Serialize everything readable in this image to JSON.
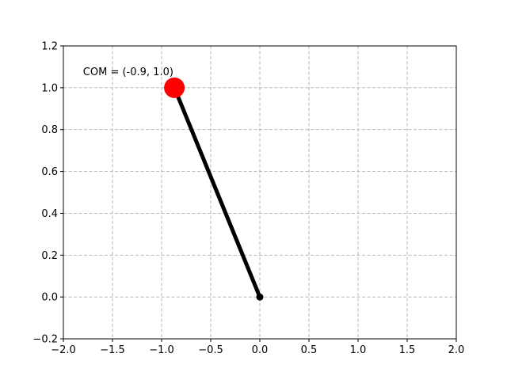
{
  "chart_data": {
    "type": "line",
    "title": "",
    "xlabel": "",
    "ylabel": "",
    "xlim": [
      -2.0,
      2.0
    ],
    "ylim": [
      -0.2,
      1.2
    ],
    "grid": true,
    "x_ticks": [
      -2.0,
      -1.5,
      -1.0,
      -0.5,
      0.0,
      0.5,
      1.0,
      1.5,
      2.0
    ],
    "y_ticks": [
      -0.2,
      0.0,
      0.2,
      0.4,
      0.6,
      0.8,
      1.0,
      1.2
    ],
    "x_tick_labels": [
      "−2.0",
      "−1.5",
      "−1.0",
      "−0.5",
      "0.0",
      "0.5",
      "1.0",
      "1.5",
      "2.0"
    ],
    "y_tick_labels": [
      "−0.2",
      "0.0",
      "0.2",
      "0.4",
      "0.6",
      "0.8",
      "1.0",
      "1.2"
    ],
    "series": [
      {
        "name": "link",
        "x": [
          0.0,
          -0.87
        ],
        "y": [
          0.0,
          1.0
        ],
        "color": "#000000"
      }
    ],
    "points": [
      {
        "name": "pivot",
        "x": 0.0,
        "y": 0.0,
        "color": "#000000"
      },
      {
        "name": "com",
        "x": -0.87,
        "y": 1.0,
        "color": "#ff0000"
      }
    ],
    "annotation": {
      "text": "COM = (-0.9, 1.0)",
      "x": -1.8,
      "y": 1.06
    }
  }
}
